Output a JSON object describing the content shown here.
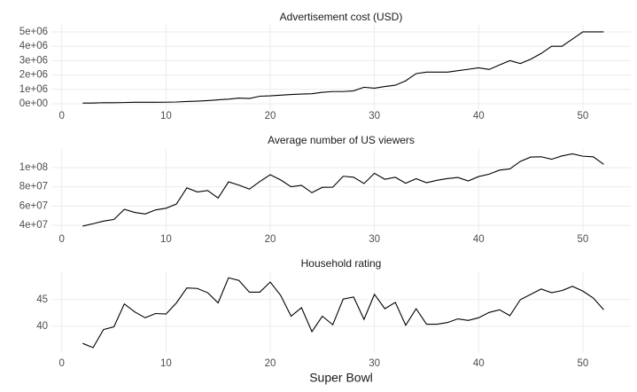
{
  "chart_data": [
    {
      "type": "line",
      "title": "Advertisement cost (USD)",
      "x": [
        2,
        3,
        4,
        5,
        6,
        7,
        8,
        9,
        10,
        11,
        12,
        13,
        14,
        15,
        16,
        17,
        18,
        19,
        20,
        21,
        22,
        23,
        24,
        25,
        26,
        27,
        28,
        29,
        30,
        31,
        32,
        33,
        34,
        35,
        36,
        37,
        38,
        39,
        40,
        41,
        42,
        43,
        44,
        45,
        46,
        47,
        48,
        49,
        50,
        51,
        52
      ],
      "series": [
        {
          "name": "Advertisement cost (USD)",
          "color": "#000000",
          "values": [
            54500,
            55000,
            78200,
            72400,
            86100,
            103500,
            103500,
            107000,
            110000,
            125000,
            162300,
            185000,
            222000,
            275000,
            324300,
            400000,
            368200,
            525000,
            550000,
            600000,
            645000,
            675000,
            700400,
            800000,
            850000,
            850000,
            900000,
            1150000,
            1085000,
            1200000,
            1291100,
            1600000,
            2100000,
            2200000,
            2200000,
            2200000,
            2302200,
            2400000,
            2500000,
            2385000,
            2699963,
            3000000,
            2800000,
            3100000,
            3500000,
            4000000,
            4000000,
            4500000,
            5000000,
            5000000,
            5000000
          ]
        }
      ],
      "xlim": [
        -1,
        54.6
      ],
      "xticks": [
        0,
        10,
        20,
        30,
        40,
        50
      ],
      "ylim": [
        -430000,
        5490000
      ],
      "yticks": [
        {
          "value": 0,
          "label": "0e+00"
        },
        {
          "value": 1000000,
          "label": "1e+06"
        },
        {
          "value": 2000000,
          "label": "2e+06"
        },
        {
          "value": 3000000,
          "label": "3e+06"
        },
        {
          "value": 4000000,
          "label": "4e+06"
        },
        {
          "value": 5000000,
          "label": "5e+06"
        }
      ],
      "grid": true
    },
    {
      "type": "line",
      "title": "Average number of US viewers",
      "x": [
        2,
        3,
        4,
        5,
        6,
        7,
        8,
        9,
        10,
        11,
        12,
        13,
        14,
        15,
        16,
        17,
        18,
        19,
        20,
        21,
        22,
        23,
        24,
        25,
        26,
        27,
        28,
        29,
        30,
        31,
        32,
        33,
        34,
        35,
        36,
        37,
        38,
        39,
        40,
        41,
        42,
        43,
        44,
        45,
        46,
        47,
        48,
        49,
        50,
        51,
        52
      ],
      "series": [
        {
          "name": "Average number of US viewers",
          "color": "#000000",
          "values": [
            39100000,
            41600000,
            44300000,
            46000000,
            56600000,
            53300000,
            51700000,
            56000000,
            57700000,
            62100000,
            78900000,
            74700000,
            76200000,
            68300000,
            85200000,
            81800000,
            77600000,
            85500000,
            92600000,
            87200000,
            80100000,
            81600000,
            73900000,
            79500000,
            79600000,
            91000000,
            90000000,
            83400000,
            94100000,
            87900000,
            90000000,
            83700000,
            88500000,
            84300000,
            86800000,
            88600000,
            89800000,
            86100000,
            90700000,
            93200000,
            97400000,
            98700000,
            106500000,
            111000000,
            111300000,
            108700000,
            112200000,
            114400000,
            111900000,
            111300000,
            103400000
          ]
        }
      ],
      "xlim": [
        -1,
        54.6
      ],
      "xticks": [
        0,
        10,
        20,
        30,
        40,
        50
      ],
      "ylim": [
        32600000,
        119400000
      ],
      "yticks": [
        {
          "value": 40000000,
          "label": "4e+07"
        },
        {
          "value": 60000000,
          "label": "6e+07"
        },
        {
          "value": 80000000,
          "label": "8e+07"
        },
        {
          "value": 100000000,
          "label": "1e+08"
        }
      ],
      "grid": true
    },
    {
      "type": "line",
      "title": "Household rating",
      "xlabel": "Super Bowl",
      "x": [
        2,
        3,
        4,
        5,
        6,
        7,
        8,
        9,
        10,
        11,
        12,
        13,
        14,
        15,
        16,
        17,
        18,
        19,
        20,
        21,
        22,
        23,
        24,
        25,
        26,
        27,
        28,
        29,
        30,
        31,
        32,
        33,
        34,
        35,
        36,
        37,
        38,
        39,
        40,
        41,
        42,
        43,
        44,
        45,
        46,
        47,
        48,
        49,
        50,
        51,
        52
      ],
      "series": [
        {
          "name": "Household rating",
          "color": "#000000",
          "values": [
            36.8,
            36.0,
            39.4,
            39.9,
            44.2,
            42.7,
            41.6,
            42.4,
            42.3,
            44.4,
            47.2,
            47.1,
            46.3,
            44.4,
            49.1,
            48.6,
            46.4,
            46.4,
            48.3,
            45.8,
            41.9,
            43.5,
            39.0,
            41.9,
            40.3,
            45.1,
            45.5,
            41.3,
            46.0,
            43.3,
            44.5,
            40.2,
            43.3,
            40.4,
            40.4,
            40.7,
            41.4,
            41.1,
            41.6,
            42.6,
            43.1,
            42.0,
            45.0,
            46.0,
            47.0,
            46.3,
            46.7,
            47.5,
            46.6,
            45.3,
            43.1
          ]
        }
      ],
      "xlim": [
        -1,
        54.6
      ],
      "xticks": [
        0,
        10,
        20,
        30,
        40,
        50
      ],
      "ylim": [
        35,
        50.3
      ],
      "yticks": [
        40,
        45
      ],
      "grid": true
    }
  ]
}
